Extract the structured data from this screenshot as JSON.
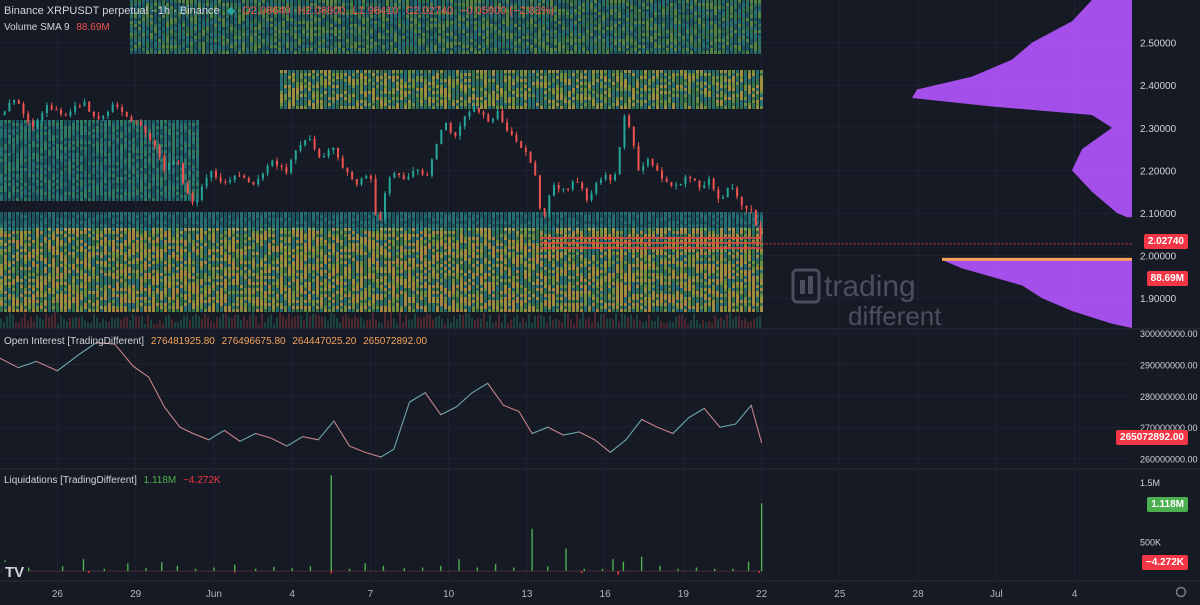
{
  "header": {
    "symbol": "Binance XRPUSDT perpetual · 1h · Binance",
    "open": "O2.08640",
    "high": "H2.08800",
    "low": "L1.98410",
    "close": "C2.02740",
    "change": "−0.05900 (−2.83%)",
    "volume_label": "Volume SMA 9",
    "volume_value": "88.69M"
  },
  "oi_header": {
    "label": "Open Interest [TradingDifferent]",
    "values": [
      "276481925.80",
      "276496675.80",
      "264447025.20",
      "265072892.00"
    ]
  },
  "liq_header": {
    "label": "Liquidations [TradingDifferent]",
    "long": "1.118M",
    "short": "−4.272K"
  },
  "watermark": {
    "line1": "trading",
    "line2": "different"
  },
  "colors": {
    "bg": "#161a25",
    "up": "#26a69a",
    "down": "#ef5350",
    "purple": "#b455ff",
    "green": "#4caf50",
    "red": "#f23645"
  },
  "chart_data": [
    {
      "type": "line",
      "name": "price",
      "y_ticks": [
        "2.50000",
        "2.40000",
        "2.30000",
        "2.20000",
        "2.10000",
        "2.00000",
        "1.90000"
      ],
      "ylim": [
        1.83,
        2.6
      ],
      "last_price": "2.02740",
      "volume_badge": "88.69M",
      "x_ticks": [
        "26",
        "29",
        "Jun",
        "4",
        "7",
        "10",
        "13",
        "16",
        "19",
        "22",
        "25",
        "28",
        "Jul",
        "4"
      ],
      "x_tick_days": [
        0,
        3,
        6,
        9,
        12,
        15,
        18,
        21,
        24,
        27,
        30,
        33,
        36,
        39
      ],
      "x_range_days": [
        -2.2,
        41.2
      ],
      "data_end_day": 27,
      "price_path_days": [
        -2.2,
        -1.6,
        -1,
        -0.4,
        0.3,
        1,
        1.5,
        2.1,
        2.7,
        3.2,
        3.7,
        4.1,
        4.6,
        4.9,
        5.3,
        5.8,
        6.3,
        7,
        7.6,
        8.2,
        8.8,
        9.3,
        9.7,
        10,
        10.6,
        11,
        11.5,
        12,
        12.3,
        12.6,
        12.9,
        13.3,
        13.7,
        14.2,
        14.6,
        14.9,
        15.2,
        15.6,
        16,
        16.3,
        16.6,
        16.9,
        17.2,
        17.6,
        18,
        18.3,
        18.6,
        19,
        19.5,
        19.9,
        20.3,
        20.7,
        21,
        21.3,
        21.5,
        21.7,
        22,
        22.3,
        22.6,
        23,
        23.4,
        23.8,
        24.2,
        24.6,
        25,
        25.4,
        25.8,
        26.2,
        26.6,
        27
      ],
      "price_path_values": [
        2.33,
        2.37,
        2.3,
        2.35,
        2.33,
        2.36,
        2.32,
        2.35,
        2.33,
        2.3,
        2.26,
        2.2,
        2.23,
        2.15,
        2.12,
        2.2,
        2.17,
        2.19,
        2.17,
        2.22,
        2.2,
        2.26,
        2.28,
        2.23,
        2.25,
        2.2,
        2.17,
        2.19,
        2.06,
        2.16,
        2.2,
        2.18,
        2.2,
        2.19,
        2.28,
        2.31,
        2.28,
        2.32,
        2.35,
        2.33,
        2.31,
        2.34,
        2.3,
        2.27,
        2.24,
        2.19,
        2.08,
        2.17,
        2.15,
        2.18,
        2.13,
        2.17,
        2.19,
        2.17,
        2.21,
        2.34,
        2.28,
        2.2,
        2.23,
        2.2,
        2.17,
        2.16,
        2.19,
        2.16,
        2.18,
        2.13,
        2.17,
        2.12,
        2.11,
        2.03
      ]
    },
    {
      "type": "line",
      "name": "Open Interest",
      "y_ticks": [
        "300000000.00",
        "290000000.00",
        "280000000.00",
        "270000000.00",
        "260000000.00"
      ],
      "ylim": [
        257000000,
        301000000
      ],
      "last_value": "265072892.00",
      "x_days": [
        -2.2,
        -1.5,
        -0.8,
        0,
        0.8,
        1.5,
        2.2,
        2.9,
        3.5,
        4.1,
        4.7,
        5.2,
        5.8,
        6.4,
        7,
        7.6,
        8.2,
        8.8,
        9.4,
        10,
        10.6,
        11.2,
        11.8,
        12.4,
        12.9,
        13.5,
        14.1,
        14.7,
        15.3,
        15.9,
        16.5,
        17.1,
        17.7,
        18.2,
        18.8,
        19.4,
        20,
        20.6,
        21.2,
        21.8,
        22.4,
        23,
        23.6,
        24.2,
        24.8,
        25.4,
        26,
        26.6,
        27
      ],
      "values": [
        292000000,
        289000000,
        291000000,
        288000000,
        293000000,
        297000000,
        296500000,
        289500000,
        286000000,
        276500000,
        270000000,
        268000000,
        266000000,
        269000000,
        265500000,
        268000000,
        266500000,
        264000000,
        267000000,
        266000000,
        272000000,
        264000000,
        262000000,
        260500000,
        263000000,
        278000000,
        281000000,
        274000000,
        276500000,
        281000000,
        284000000,
        277000000,
        275000000,
        268000000,
        270000000,
        267500000,
        268500000,
        266000000,
        262000000,
        266000000,
        272500000,
        270000000,
        268000000,
        273000000,
        276000000,
        270000000,
        271000000,
        277000000,
        265000000
      ]
    },
    {
      "type": "bar",
      "name": "Liquidations",
      "y_ticks": [
        "1.5M",
        "500K"
      ],
      "ylim": [
        -150000,
        1700000
      ],
      "long_value": "1.118M",
      "short_value": "−4.272K",
      "x_days": [
        -2,
        -1.1,
        0.2,
        1,
        1.8,
        2.7,
        3.4,
        4,
        4.6,
        5.3,
        6,
        6.8,
        7.6,
        8.3,
        9,
        9.7,
        10.5,
        11.2,
        11.8,
        12.5,
        13.3,
        14,
        14.7,
        15.4,
        16.1,
        16.8,
        17.5,
        18.2,
        18.8,
        19.5,
        20.2,
        20.9,
        21.3,
        21.7,
        22.4,
        23.1,
        23.8,
        24.5,
        25.2,
        25.9,
        26.5,
        27
      ],
      "values": [
        180000,
        60000,
        80000,
        200000,
        40000,
        130000,
        50000,
        150000,
        90000,
        40000,
        60000,
        110000,
        40000,
        70000,
        50000,
        80000,
        1610000,
        40000,
        130000,
        90000,
        50000,
        60000,
        90000,
        200000,
        60000,
        120000,
        60000,
        710000,
        80000,
        380000,
        40000,
        40000,
        200000,
        160000,
        240000,
        90000,
        40000,
        60000,
        40000,
        40000,
        160000,
        1140000
      ],
      "neg_days": [
        1.2,
        6.8,
        10.5,
        20.1,
        21.5,
        26.9
      ],
      "neg_values": [
        -30000,
        -25000,
        -40000,
        -35000,
        -60000,
        -30000
      ]
    }
  ]
}
